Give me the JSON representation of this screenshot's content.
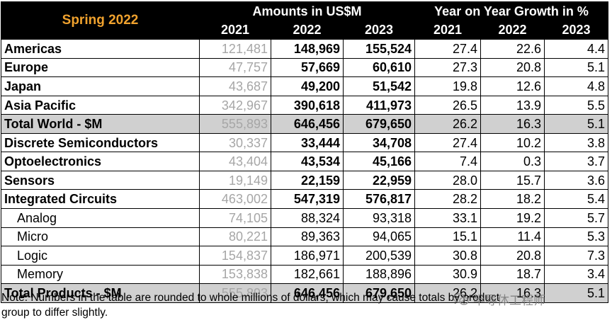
{
  "header": {
    "season": "Spring 2022",
    "amounts_title": "Amounts in US$M",
    "growth_title": "Year on Year Growth in %",
    "years_amounts": [
      "2021",
      "2022",
      "2023"
    ],
    "years_growth": [
      "2021",
      "2022",
      "2023"
    ]
  },
  "rows": [
    {
      "label": "Americas",
      "a2021": "121,481",
      "a2022": "148,969",
      "a2023": "155,524",
      "g2021": "27.4",
      "g2022": "22.6",
      "g2023": "4.4"
    },
    {
      "label": "Europe",
      "a2021": "47,757",
      "a2022": "57,669",
      "a2023": "60,610",
      "g2021": "27.3",
      "g2022": "20.8",
      "g2023": "5.1"
    },
    {
      "label": "Japan",
      "a2021": "43,687",
      "a2022": "49,200",
      "a2023": "51,542",
      "g2021": "19.8",
      "g2022": "12.6",
      "g2023": "4.8"
    },
    {
      "label": "Asia Pacific",
      "a2021": "342,967",
      "a2022": "390,618",
      "a2023": "411,973",
      "g2021": "26.5",
      "g2022": "13.9",
      "g2023": "5.5"
    },
    {
      "label": "Total World - $M",
      "a2021": "555,893",
      "a2022": "646,456",
      "a2023": "679,650",
      "g2021": "26.2",
      "g2022": "16.3",
      "g2023": "5.1"
    },
    {
      "label": "Discrete Semiconductors",
      "a2021": "30,337",
      "a2022": "33,444",
      "a2023": "34,708",
      "g2021": "27.4",
      "g2022": "10.2",
      "g2023": "3.8"
    },
    {
      "label": "Optoelectronics",
      "a2021": "43,404",
      "a2022": "43,534",
      "a2023": "45,166",
      "g2021": "7.4",
      "g2022": "0.3",
      "g2023": "3.7"
    },
    {
      "label": "Sensors",
      "a2021": "19,149",
      "a2022": "22,159",
      "a2023": "22,959",
      "g2021": "28.0",
      "g2022": "15.7",
      "g2023": "3.6"
    },
    {
      "label": "Integrated Circuits",
      "a2021": "463,002",
      "a2022": "547,319",
      "a2023": "576,817",
      "g2021": "28.2",
      "g2022": "18.2",
      "g2023": "5.4"
    },
    {
      "label": "Analog",
      "a2021": "74,105",
      "a2022": "88,324",
      "a2023": "93,318",
      "g2021": "33.1",
      "g2022": "19.2",
      "g2023": "5.7"
    },
    {
      "label": "Micro",
      "a2021": "80,221",
      "a2022": "89,363",
      "a2023": "94,065",
      "g2021": "15.1",
      "g2022": "11.4",
      "g2023": "5.3"
    },
    {
      "label": "Logic",
      "a2021": "154,837",
      "a2022": "186,971",
      "a2023": "200,539",
      "g2021": "30.8",
      "g2022": "20.8",
      "g2023": "7.3"
    },
    {
      "label": "Memory",
      "a2021": "153,838",
      "a2022": "182,661",
      "a2023": "188,896",
      "g2021": "30.9",
      "g2022": "18.7",
      "g2023": "3.4"
    },
    {
      "label": "Total Products - $M",
      "a2021": "555,893",
      "a2022": "646,456",
      "a2023": "679,650",
      "g2021": "26.2",
      "g2022": "16.3",
      "g2023": "5.1"
    }
  ],
  "note": "Note: Numbers in the table are rounded to whole millions of dollars, which may cause totals by product group to differ slightly.",
  "watermark": "半导体工程师",
  "colors": {
    "season": "#f0a22e",
    "header_bg": "#000000",
    "total_bg": "#d0d0d0",
    "muted": "#a6a6a6"
  }
}
